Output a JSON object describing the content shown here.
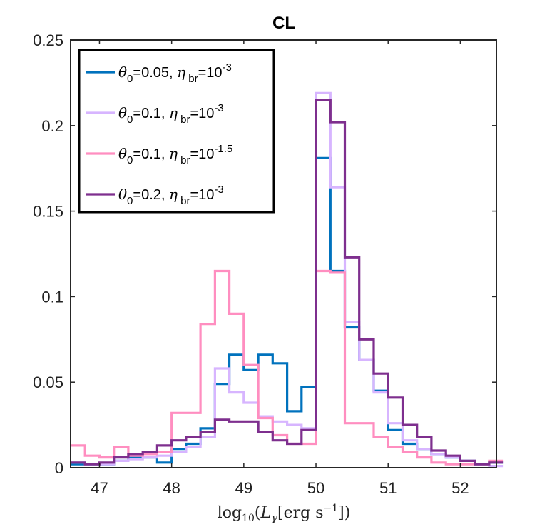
{
  "chart_data": {
    "type": "histogram-step",
    "title": "CL",
    "xlabel": "log10(Lγ[erg s^-1])",
    "xlabel_parts": {
      "func": "log",
      "sub": "10",
      "open": "(",
      "var": "L",
      "var_sub": "γ",
      "bracket_open": "[erg s",
      "sup": "−1",
      "bracket_close": "])"
    },
    "ylabel": "",
    "xlim": [
      46.6,
      52.5
    ],
    "ylim": [
      0,
      0.25
    ],
    "xticks": [
      47,
      48,
      49,
      50,
      51,
      52
    ],
    "xtick_labels": [
      "47",
      "48",
      "49",
      "50",
      "51",
      "52"
    ],
    "yticks": [
      0,
      0.05,
      0.1,
      0.15,
      0.2,
      0.25
    ],
    "ytick_labels": [
      "0",
      "0.05",
      "0.1",
      "0.15",
      "0.2",
      "0.25"
    ],
    "bin_start": 46.6,
    "bin_width": 0.2,
    "legend_position": "top-left",
    "series": [
      {
        "name": "θ0=0.05, ηbr=10^-3",
        "theta": "0.05",
        "eta_exp": "-3",
        "color": "#0072BD",
        "values": [
          0.002,
          0.002,
          0.002,
          0.004,
          0.006,
          0.006,
          0.003,
          0.011,
          0.014,
          0.023,
          0.049,
          0.066,
          0.057,
          0.066,
          0.061,
          0.033,
          0.047,
          0.181,
          0.115,
          0.082,
          0.063,
          0.045,
          0.022,
          0.014,
          0.011,
          0.008,
          0.006,
          0.004,
          0.002,
          0.003
        ]
      },
      {
        "name": "θ0=0.1, ηbr=10^-3",
        "theta": "0.1",
        "eta_exp": "-3",
        "color": "#D7B5FF",
        "values": [
          0.003,
          0.002,
          0.002,
          0.004,
          0.005,
          0.006,
          0.007,
          0.009,
          0.012,
          0.018,
          0.058,
          0.044,
          0.038,
          0.03,
          0.027,
          0.025,
          0.023,
          0.219,
          0.164,
          0.085,
          0.063,
          0.044,
          0.026,
          0.016,
          0.011,
          0.008,
          0.006,
          0.004,
          0.002,
          0.001
        ]
      },
      {
        "name": "θ0=0.1, ηbr=10^-1.5",
        "theta": "0.1",
        "eta_exp": "-1.5",
        "color": "#FF8EC0",
        "values": [
          0.013,
          0.007,
          0.006,
          0.012,
          0.007,
          0.008,
          0.009,
          0.032,
          0.032,
          0.084,
          0.115,
          0.09,
          0.06,
          0.029,
          0.019,
          0.014,
          0.014,
          0.115,
          0.114,
          0.026,
          0.026,
          0.018,
          0.012,
          0.009,
          0.006,
          0.003,
          0.002,
          0.002,
          0.002,
          0.004
        ]
      },
      {
        "name": "θ0=0.2, ηbr=10^-3",
        "theta": "0.2",
        "eta_exp": "-3",
        "color": "#7E2F8E",
        "values": [
          0.003,
          0.002,
          0.003,
          0.006,
          0.008,
          0.009,
          0.013,
          0.016,
          0.018,
          0.021,
          0.028,
          0.027,
          0.027,
          0.021,
          0.016,
          0.014,
          0.022,
          0.215,
          0.202,
          0.123,
          0.075,
          0.055,
          0.041,
          0.025,
          0.018,
          0.01,
          0.007,
          0.004,
          0.002,
          0.003
        ]
      }
    ]
  }
}
